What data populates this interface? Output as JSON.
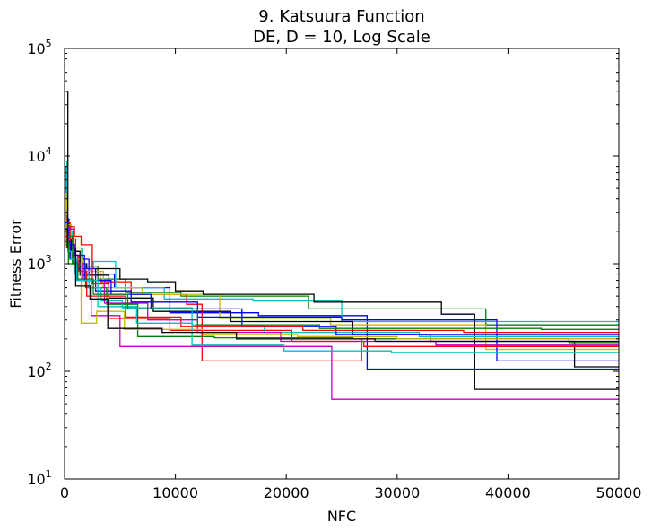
{
  "chart_data": {
    "type": "line",
    "title_line1": "9.   Katsuura Function",
    "title_line2": "DE, D = 10, Log Scale",
    "xlabel": "NFC",
    "ylabel": "Fitness Error",
    "xlim": [
      0,
      50000
    ],
    "ylim": [
      10,
      100000
    ],
    "yscale": "log",
    "grid": false,
    "x_ticks": [
      0,
      10000,
      20000,
      30000,
      40000,
      50000
    ],
    "x_tick_labels": [
      "0",
      "10000",
      "20000",
      "30000",
      "40000",
      "50000"
    ],
    "y_ticks": [
      10,
      100,
      1000,
      10000,
      100000
    ],
    "y_tick_labels": [
      {
        "base": "10",
        "exp": "1"
      },
      {
        "base": "10",
        "exp": "2"
      },
      {
        "base": "10",
        "exp": "3"
      },
      {
        "base": "10",
        "exp": "4"
      },
      {
        "base": "10",
        "exp": "5"
      }
    ],
    "series": [
      {
        "color": "#0000ff",
        "x": [
          0,
          150,
          400,
          900,
          2200,
          4500,
          9500,
          17500,
          27300,
          50000
        ],
        "y": [
          8000,
          2600,
          1500,
          1100,
          800,
          600,
          350,
          330,
          105,
          105
        ]
      },
      {
        "color": "#008000",
        "x": [
          0,
          200,
          600,
          1500,
          3000,
          5500,
          10500,
          22000,
          38000,
          50000
        ],
        "y": [
          6000,
          2100,
          1300,
          950,
          720,
          540,
          500,
          380,
          270,
          270
        ]
      },
      {
        "color": "#ff0000",
        "x": [
          0,
          150,
          500,
          1300,
          3200,
          6000,
          11000,
          12400,
          26800,
          40000,
          50000
        ],
        "y": [
          3000,
          2400,
          1200,
          850,
          680,
          520,
          420,
          125,
          200,
          200,
          200
        ]
      },
      {
        "color": "#00bfbf",
        "x": [
          0,
          200,
          700,
          1600,
          2600,
          4600,
          9000,
          17000,
          25000,
          50000
        ],
        "y": [
          9000,
          2000,
          1400,
          900,
          1050,
          600,
          470,
          450,
          290,
          290
        ]
      },
      {
        "color": "#bf00bf",
        "x": [
          0,
          150,
          400,
          1200,
          2400,
          5000,
          24100,
          50000
        ],
        "y": [
          3500,
          1900,
          1200,
          700,
          330,
          170,
          55,
          55
        ]
      },
      {
        "color": "#bfbf00",
        "x": [
          0,
          250,
          600,
          1600,
          3500,
          7000,
          14000,
          24000,
          38000,
          50000
        ],
        "y": [
          4000,
          2300,
          1100,
          850,
          600,
          520,
          310,
          270,
          160,
          160
        ]
      },
      {
        "color": "#000000",
        "x": [
          0,
          300,
          800,
          2000,
          5000,
          7500,
          10000,
          12500,
          22500,
          34000,
          37000,
          50000
        ],
        "y": [
          40000,
          1500,
          1000,
          900,
          720,
          680,
          560,
          520,
          440,
          340,
          68,
          68
        ]
      },
      {
        "color": "#000000",
        "x": [
          0,
          200,
          600,
          1400,
          4000,
          8000,
          15000,
          26000,
          33000,
          46000,
          50000
        ],
        "y": [
          2800,
          1700,
          1300,
          780,
          480,
          360,
          290,
          220,
          190,
          110,
          110
        ]
      },
      {
        "color": "#0000ff",
        "x": [
          0,
          150,
          500,
          1100,
          2800,
          6000,
          12000,
          25000,
          39000,
          50000
        ],
        "y": [
          3000,
          1600,
          1100,
          900,
          560,
          440,
          320,
          300,
          125,
          125
        ]
      },
      {
        "color": "#008000",
        "x": [
          0,
          250,
          700,
          1900,
          3800,
          6600,
          13500,
          26000,
          45500,
          50000
        ],
        "y": [
          2000,
          1800,
          1000,
          600,
          420,
          210,
          205,
          200,
          185,
          185
        ]
      },
      {
        "color": "#ff0000",
        "x": [
          0,
          200,
          900,
          1500,
          2500,
          4000,
          9500,
          20500,
          27000,
          50000
        ],
        "y": [
          2500,
          2200,
          1800,
          1500,
          650,
          310,
          240,
          190,
          170,
          170
        ]
      },
      {
        "color": "#00bfbf",
        "x": [
          0,
          300,
          900,
          2200,
          3300,
          5200,
          11500,
          18000,
          32000,
          50000
        ],
        "y": [
          2200,
          1300,
          800,
          600,
          450,
          390,
          270,
          230,
          210,
          210
        ]
      },
      {
        "color": "#bf00bf",
        "x": [
          0,
          200,
          800,
          1600,
          3600,
          7500,
          12000,
          19500,
          33500,
          50000
        ],
        "y": [
          1900,
          2100,
          1000,
          700,
          430,
          300,
          230,
          190,
          175,
          175
        ]
      },
      {
        "color": "#bfbf00",
        "x": [
          0,
          150,
          1500,
          2900,
          5400,
          12500,
          21000,
          30000,
          50000
        ],
        "y": [
          4500,
          1400,
          280,
          360,
          245,
          220,
          210,
          200,
          200
        ]
      },
      {
        "color": "#0000ff",
        "x": [
          0,
          300,
          900,
          1800,
          4200,
          7800,
          16000,
          24500,
          50000
        ],
        "y": [
          2400,
          1500,
          1200,
          700,
          520,
          380,
          260,
          220,
          220
        ]
      },
      {
        "color": "#ff0000",
        "x": [
          0,
          250,
          1000,
          2000,
          5500,
          10500,
          21500,
          36000,
          50000
        ],
        "y": [
          1800,
          1700,
          850,
          500,
          320,
          260,
          240,
          230,
          230
        ]
      },
      {
        "color": "#00bfbf",
        "x": [
          0,
          400,
          1100,
          3000,
          6500,
          11500,
          19800,
          29500,
          50000
        ],
        "y": [
          1500,
          1100,
          700,
          400,
          280,
          175,
          155,
          150,
          150
        ]
      },
      {
        "color": "#008000",
        "x": [
          0,
          350,
          1200,
          2600,
          5700,
          12000,
          23000,
          43000,
          50000
        ],
        "y": [
          1600,
          1000,
          720,
          520,
          380,
          270,
          250,
          245,
          245
        ]
      },
      {
        "color": "#000000",
        "x": [
          0,
          250,
          1000,
          2300,
          3900,
          8800,
          15500,
          28000,
          50000
        ],
        "y": [
          2100,
          1400,
          620,
          470,
          250,
          230,
          200,
          190,
          190
        ]
      }
    ]
  }
}
